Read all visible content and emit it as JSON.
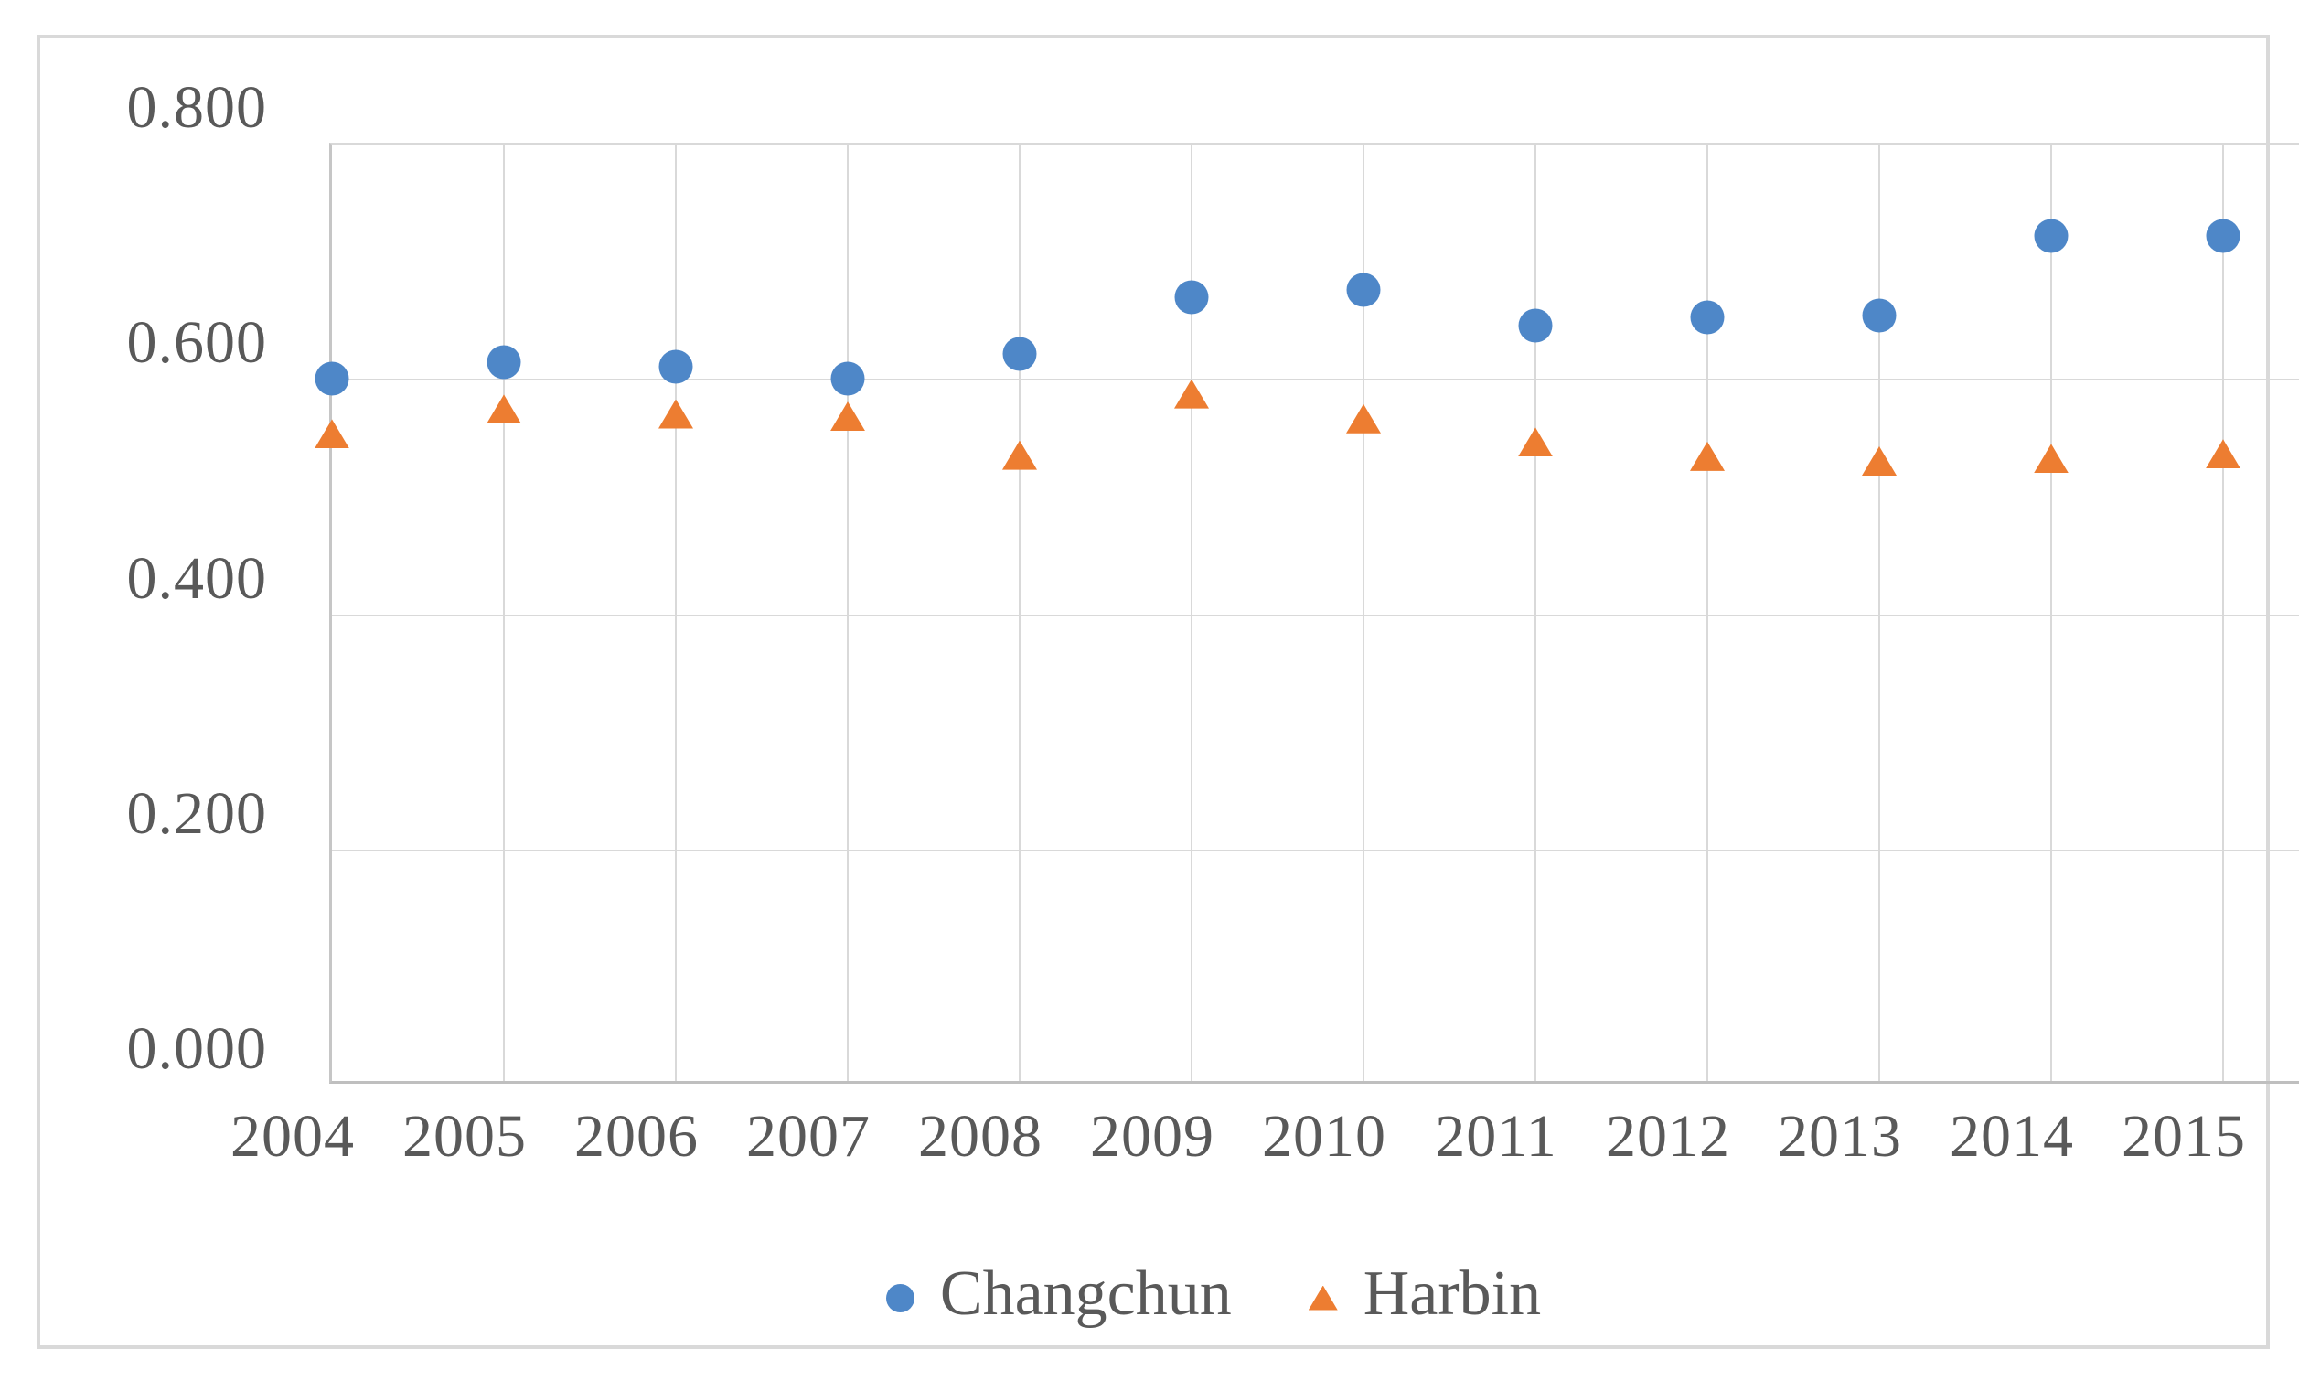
{
  "chart_data": {
    "type": "scatter",
    "title": "",
    "xlabel": "",
    "ylabel": "",
    "x_tick_labels": [
      "2004",
      "2005",
      "2006",
      "2007",
      "2008",
      "2009",
      "2010",
      "2011",
      "2012",
      "2013",
      "2014",
      "2015"
    ],
    "x": [
      2004,
      2005,
      2006,
      2007,
      2008,
      2009,
      2010,
      2011,
      2012,
      2013,
      2014,
      2015
    ],
    "series": [
      {
        "name": "Changchun",
        "marker": "circle",
        "color": "#4e87c8",
        "values": [
          0.601,
          0.615,
          0.611,
          0.601,
          0.622,
          0.67,
          0.676,
          0.646,
          0.653,
          0.655,
          0.722,
          0.722
        ]
      },
      {
        "name": "Harbin",
        "marker": "triangle",
        "color": "#ed7d31",
        "values": [
          0.554,
          0.575,
          0.571,
          0.569,
          0.536,
          0.588,
          0.567,
          0.547,
          0.535,
          0.531,
          0.533,
          0.537
        ]
      }
    ],
    "ylim": [
      0.0,
      0.8
    ],
    "ytick_step": 0.2,
    "y_tick_labels": [
      "0.000",
      "0.200",
      "0.400",
      "0.600",
      "0.800"
    ],
    "x_right_pad_years": 0.5,
    "grid": true,
    "legend_position": "bottom-center",
    "axis_text_color": "#595959",
    "gridline_color": "#d9d9d9",
    "frame_color": "#d9d9d9"
  }
}
